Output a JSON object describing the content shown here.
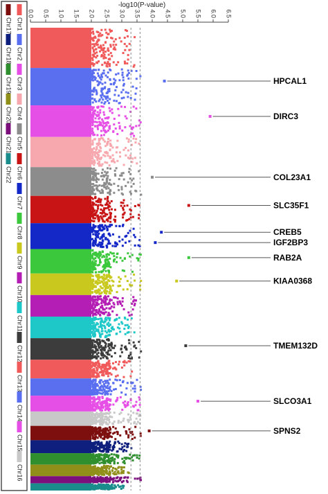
{
  "chart_data": {
    "type": "scatter",
    "title": "",
    "xlabel": "-log10(P-value)",
    "ylabel": "",
    "xlim": [
      0,
      6.5
    ],
    "x_ticks": [
      "0.0",
      "0.5",
      "1.0",
      "1.5",
      "2.0",
      "2.5",
      "3.0",
      "3.5",
      "4.0",
      "4.5",
      "5.0",
      "5.5",
      "6.0",
      "6.5"
    ],
    "threshold_lines": [
      3.3,
      3.6
    ],
    "grid": false,
    "legend_position": "left",
    "chromosomes": [
      {
        "name": "Chr1",
        "color": "#f05a5a",
        "max": 3.4
      },
      {
        "name": "Chr2",
        "color": "#5a6ef0",
        "max": 4.4
      },
      {
        "name": "Chr3",
        "color": "#e64fe6",
        "max": 5.9
      },
      {
        "name": "Chr4",
        "color": "#f7a8ae",
        "max": 3.6
      },
      {
        "name": "Chr5",
        "color": "#8c8c8c",
        "max": 4.0
      },
      {
        "name": "Chr6",
        "color": "#c81414",
        "max": 5.2
      },
      {
        "name": "Chr7",
        "color": "#1428c8",
        "max": 4.3
      },
      {
        "name": "Chr8",
        "color": "#3cc83c",
        "max": 5.2
      },
      {
        "name": "Chr9",
        "color": "#c8c81e",
        "max": 4.8
      },
      {
        "name": "Chr10",
        "color": "#b41eb4",
        "max": 3.5
      },
      {
        "name": "Chr11",
        "color": "#1ec8c8",
        "max": 3.4
      },
      {
        "name": "Chr12",
        "color": "#3c3c3c",
        "max": 5.1
      },
      {
        "name": "Chr13",
        "color": "#f05a5a",
        "max": 3.3
      },
      {
        "name": "Chr14",
        "color": "#5a6ef0",
        "max": 3.6
      },
      {
        "name": "Chr15",
        "color": "#e64fe6",
        "max": 5.5
      },
      {
        "name": "Chr16",
        "color": "#c8c8c8",
        "max": 3.9
      },
      {
        "name": "Chr17",
        "color": "#7d0f0f",
        "max": 3.9
      },
      {
        "name": "Chr18",
        "color": "#0f1f7d",
        "max": 3.3
      },
      {
        "name": "Chr19",
        "color": "#2f8f2f",
        "max": 3.6
      },
      {
        "name": "Chr20",
        "color": "#8f8f1a",
        "max": 3.2
      },
      {
        "name": "Chr21",
        "color": "#7d0f7d",
        "max": 3.6
      },
      {
        "name": "Chr22",
        "color": "#1a8c8c",
        "max": 3.1
      }
    ],
    "annotations": [
      {
        "gene": "HPCAL1",
        "chromosome": "Chr2",
        "x": 4.4
      },
      {
        "gene": "DIRC3",
        "chromosome": "Chr3",
        "x": 5.9
      },
      {
        "gene": "COL23A1",
        "chromosome": "Chr5",
        "x": 4.0
      },
      {
        "gene": "SLC35F1",
        "chromosome": "Chr6",
        "x": 5.2
      },
      {
        "gene": "CREB5",
        "chromosome": "Chr7",
        "x": 4.3
      },
      {
        "gene": "IGF2BP3",
        "chromosome": "Chr7",
        "x": 4.1
      },
      {
        "gene": "RAB2A",
        "chromosome": "Chr8",
        "x": 5.2
      },
      {
        "gene": "KIAA0368",
        "chromosome": "Chr9",
        "x": 4.8
      },
      {
        "gene": "TMEM132D",
        "chromosome": "Chr12",
        "x": 5.1
      },
      {
        "gene": "SLCO3A1",
        "chromosome": "Chr15",
        "x": 5.5
      },
      {
        "gene": "SPNS2",
        "chromosome": "Chr17",
        "x": 3.9
      }
    ],
    "legend_columns": [
      [
        "Chr1",
        "Chr2",
        "Chr3",
        "Chr4",
        "Chr5",
        "Chr6",
        "Chr7",
        "Chr8",
        "Chr9",
        "Chr10",
        "Chr11",
        "Chr12",
        "Chr13",
        "Chr14",
        "Chr15",
        "Chr16"
      ],
      [
        "Chr17",
        "Chr18",
        "Chr19",
        "Chr20",
        "Chr21",
        "Chr22"
      ]
    ]
  }
}
